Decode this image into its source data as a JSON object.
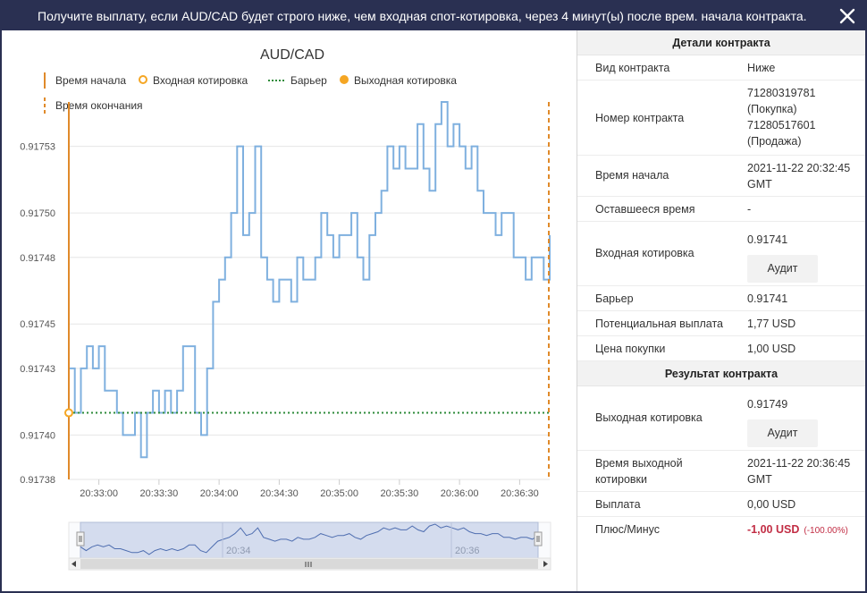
{
  "header": {
    "title": "Получите выплату, если AUD/CAD будет строго ниже, чем входная спот-котировка, через 4 минут(ы) после врем. начала контракта."
  },
  "chart": {
    "title": "AUD/CAD",
    "legend": {
      "start_time": "Время начала",
      "entry_spot": "Входная котировка",
      "barrier": "Барьер",
      "exit_spot": "Выходная котировка",
      "end_time": "Время окончания"
    },
    "y_ticks": [
      "0.91738",
      "0.91740",
      "0.91743",
      "0.91745",
      "0.91748",
      "0.91750",
      "0.91753"
    ],
    "x_ticks": [
      "20:33:00",
      "20:33:30",
      "20:34:00",
      "20:34:30",
      "20:35:00",
      "20:35:30",
      "20:36:00",
      "20:36:30"
    ],
    "navigator_ticks": [
      "20:34",
      "20:36"
    ],
    "colors": {
      "series": "#7fb0df",
      "start_end": "#e08a2a",
      "barrier": "#2e8b3a",
      "nav_fill": "#ccd6eb"
    }
  },
  "chart_data": {
    "type": "line",
    "title": "AUD/CAD",
    "xlabel": "",
    "ylabel": "",
    "x_range": [
      "20:32:45",
      "20:36:45"
    ],
    "ylim": [
      0.91738,
      0.91755
    ],
    "barrier": 0.91741,
    "entry_spot": 0.91741,
    "exit_spot": 0.91749,
    "series": [
      {
        "x": [
          "20:32:45",
          "20:32:48",
          "20:32:51",
          "20:32:54",
          "20:32:57",
          "20:33:00",
          "20:33:03",
          "20:33:06",
          "20:33:09",
          "20:33:12",
          "20:33:15",
          "20:33:18",
          "20:33:21",
          "20:33:24",
          "20:33:27",
          "20:33:30",
          "20:33:33",
          "20:33:36",
          "20:33:39",
          "20:33:42",
          "20:33:45",
          "20:33:48",
          "20:33:51",
          "20:33:54",
          "20:33:57",
          "20:34:00",
          "20:34:03",
          "20:34:06",
          "20:34:09",
          "20:34:12",
          "20:34:15",
          "20:34:18",
          "20:34:21",
          "20:34:24",
          "20:34:27",
          "20:34:30",
          "20:34:33",
          "20:34:36",
          "20:34:39",
          "20:34:42",
          "20:34:45",
          "20:34:48",
          "20:34:51",
          "20:34:54",
          "20:34:57",
          "20:35:00",
          "20:35:03",
          "20:35:06",
          "20:35:09",
          "20:35:12",
          "20:35:15",
          "20:35:18",
          "20:35:21",
          "20:35:24",
          "20:35:27",
          "20:35:30",
          "20:35:33",
          "20:35:36",
          "20:35:39",
          "20:35:42",
          "20:35:45",
          "20:35:48",
          "20:35:51",
          "20:35:54",
          "20:35:57",
          "20:36:00",
          "20:36:03",
          "20:36:06",
          "20:36:09",
          "20:36:12",
          "20:36:15",
          "20:36:18",
          "20:36:21",
          "20:36:24",
          "20:36:27",
          "20:36:30",
          "20:36:33",
          "20:36:36",
          "20:36:39",
          "20:36:42",
          "20:36:45"
        ],
        "y": [
          0.91743,
          0.91741,
          0.91743,
          0.91744,
          0.91743,
          0.91744,
          0.91742,
          0.91742,
          0.91741,
          0.9174,
          0.9174,
          0.91741,
          0.91739,
          0.91741,
          0.91742,
          0.91741,
          0.91742,
          0.91741,
          0.91742,
          0.91744,
          0.91744,
          0.91741,
          0.9174,
          0.91743,
          0.91746,
          0.91747,
          0.91748,
          0.9175,
          0.91753,
          0.91749,
          0.9175,
          0.91753,
          0.91748,
          0.91747,
          0.91746,
          0.91747,
          0.91747,
          0.91746,
          0.91748,
          0.91747,
          0.91747,
          0.91748,
          0.9175,
          0.91749,
          0.91748,
          0.91749,
          0.91749,
          0.9175,
          0.91748,
          0.91747,
          0.91749,
          0.9175,
          0.91751,
          0.91753,
          0.91752,
          0.91753,
          0.91752,
          0.91752,
          0.91754,
          0.91752,
          0.91751,
          0.91754,
          0.91755,
          0.91753,
          0.91754,
          0.91753,
          0.91752,
          0.91753,
          0.91751,
          0.9175,
          0.9175,
          0.91749,
          0.9175,
          0.9175,
          0.91748,
          0.91748,
          0.91747,
          0.91748,
          0.91748,
          0.91747,
          0.91749
        ]
      }
    ]
  },
  "details": {
    "section_title": "Детали контракта",
    "contract_type_label": "Вид контракта",
    "contract_type_value": "Ниже",
    "contract_id_label": "Номер контракта",
    "contract_id_buy_number": "71280319781",
    "contract_id_buy_suffix": "(Покупка)",
    "contract_id_sell_number": "71280517601",
    "contract_id_sell_suffix": "(Продажа)",
    "start_time_label": "Время начала",
    "start_time_date": "2021-11-22 20:32:45",
    "start_time_zone": "GMT",
    "remaining_label": "Оставшееся время",
    "remaining_value": "-",
    "entry_spot_label": "Входная котировка",
    "entry_spot_value": "0.91741",
    "audit_label": "Аудит",
    "barrier_label": "Барьер",
    "barrier_value": "0.91741",
    "potential_payout_label": "Потенциальная выплата",
    "potential_payout_value": "1,77 USD",
    "purchase_price_label": "Цена покупки",
    "purchase_price_value": "1,00 USD"
  },
  "result": {
    "section_title": "Результат контракта",
    "exit_spot_label": "Выходная котировка",
    "exit_spot_value": "0.91749",
    "audit_label": "Аудит",
    "exit_time_label_line1": "Время выходной",
    "exit_time_label_line2": "котировки",
    "exit_time_date": "2021-11-22 20:36:45",
    "exit_time_zone": "GMT",
    "payout_label": "Выплата",
    "payout_value": "0,00 USD",
    "profit_loss_label": "Плюс/Минус",
    "profit_loss_value": "-1,00 USD",
    "profit_loss_pct": "(-100.00%)"
  }
}
